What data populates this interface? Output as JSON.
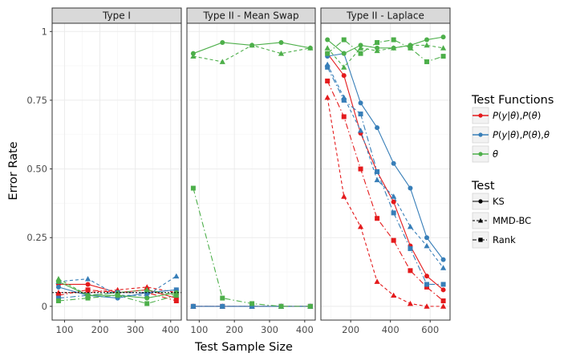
{
  "chart_data": {
    "type": "line",
    "xlabel": "Test Sample Size",
    "ylabel": "Error Rate",
    "ylim": [
      -0.05,
      1.03
    ],
    "yticks": [
      0,
      0.25,
      0.5,
      0.75,
      1
    ],
    "ytick_labels": [
      "0",
      "0.25",
      "0.50",
      "0.75",
      "1"
    ],
    "grid": true,
    "legend_position": "right",
    "colors": {
      "red": "#e41a1c",
      "blue": "#377eb8",
      "green": "#4daf4a",
      "strip": "#d9d9d9",
      "panel_border": "#333333",
      "grid": "#ebebeb",
      "reference_line": "#000000"
    },
    "reference_line_y": 0.05,
    "legend_test_functions": {
      "title": "Test Functions",
      "items": [
        {
          "key": "red",
          "label": "P(y|θ),P(θ)"
        },
        {
          "key": "blue",
          "label": "P(y|θ),P(θ),θ"
        },
        {
          "key": "green",
          "label": "θ"
        }
      ]
    },
    "legend_test": {
      "title": "Test",
      "items": [
        {
          "key": "KS",
          "label": "KS",
          "shape": "circle",
          "dash": "solid"
        },
        {
          "key": "MMD-BC",
          "label": "MMD-BC",
          "shape": "triangle",
          "dash": "dashed"
        },
        {
          "key": "Rank",
          "label": "Rank",
          "shape": "square",
          "dash": "dashdot"
        }
      ]
    },
    "panels": [
      {
        "title": "Type I",
        "xlim": [
          65,
          430
        ],
        "xticks": [
          100,
          200,
          300,
          400
        ],
        "series": [
          {
            "func": "red",
            "test": "KS",
            "x": [
              83,
              166,
              250,
              333,
              416
            ],
            "y": [
              0.08,
              0.08,
              0.05,
              0.06,
              0.03
            ]
          },
          {
            "func": "red",
            "test": "MMD-BC",
            "x": [
              83,
              166,
              250,
              333,
              416
            ],
            "y": [
              0.05,
              0.05,
              0.06,
              0.07,
              0.05
            ]
          },
          {
            "func": "red",
            "test": "Rank",
            "x": [
              83,
              166,
              250,
              333,
              416
            ],
            "y": [
              0.04,
              0.06,
              0.05,
              0.05,
              0.02
            ]
          },
          {
            "func": "blue",
            "test": "KS",
            "x": [
              83,
              166,
              250,
              333,
              416
            ],
            "y": [
              0.07,
              0.04,
              0.03,
              0.05,
              0.06
            ]
          },
          {
            "func": "blue",
            "test": "MMD-BC",
            "x": [
              83,
              166,
              250,
              333,
              416
            ],
            "y": [
              0.09,
              0.1,
              0.04,
              0.04,
              0.11
            ]
          },
          {
            "func": "blue",
            "test": "Rank",
            "x": [
              83,
              166,
              250,
              333,
              416
            ],
            "y": [
              0.03,
              0.04,
              0.05,
              0.05,
              0.06
            ]
          },
          {
            "func": "green",
            "test": "KS",
            "x": [
              83,
              166,
              250,
              333,
              416
            ],
            "y": [
              0.09,
              0.04,
              0.04,
              0.03,
              0.05
            ]
          },
          {
            "func": "green",
            "test": "MMD-BC",
            "x": [
              83,
              166,
              250,
              333,
              416
            ],
            "y": [
              0.1,
              0.04,
              0.05,
              0.06,
              0.04
            ]
          },
          {
            "func": "green",
            "test": "Rank",
            "x": [
              83,
              166,
              250,
              333,
              416
            ],
            "y": [
              0.02,
              0.03,
              0.04,
              0.01,
              0.04
            ]
          }
        ]
      },
      {
        "title": "Type II - Mean Swap",
        "xlim": [
          65,
          430
        ],
        "xticks": [
          100,
          200,
          300,
          400
        ],
        "series": [
          {
            "func": "red",
            "test": "KS",
            "x": [
              83,
              166,
              250,
              333,
              416
            ],
            "y": [
              0,
              0,
              0,
              0,
              0
            ]
          },
          {
            "func": "red",
            "test": "MMD-BC",
            "x": [
              83,
              166,
              250,
              333,
              416
            ],
            "y": [
              0,
              0,
              0,
              0,
              0
            ]
          },
          {
            "func": "red",
            "test": "Rank",
            "x": [
              83,
              166,
              250,
              333,
              416
            ],
            "y": [
              0,
              0,
              0,
              0,
              0
            ]
          },
          {
            "func": "blue",
            "test": "KS",
            "x": [
              83,
              166,
              250,
              333,
              416
            ],
            "y": [
              0,
              0,
              0,
              0,
              0
            ]
          },
          {
            "func": "blue",
            "test": "MMD-BC",
            "x": [
              83,
              166,
              250,
              333,
              416
            ],
            "y": [
              0,
              0,
              0,
              0,
              0
            ]
          },
          {
            "func": "blue",
            "test": "Rank",
            "x": [
              83,
              166,
              250,
              333,
              416
            ],
            "y": [
              0,
              0,
              0,
              0,
              0
            ]
          },
          {
            "func": "green",
            "test": "KS",
            "x": [
              83,
              166,
              250,
              333,
              416
            ],
            "y": [
              0.92,
              0.96,
              0.95,
              0.96,
              0.94
            ]
          },
          {
            "func": "green",
            "test": "MMD-BC",
            "x": [
              83,
              166,
              250,
              333,
              416
            ],
            "y": [
              0.91,
              0.89,
              0.95,
              0.92,
              0.94
            ]
          },
          {
            "func": "green",
            "test": "Rank",
            "x": [
              83,
              166,
              250,
              333,
              416
            ],
            "y": [
              0.43,
              0.03,
              0.01,
              0,
              0
            ]
          }
        ]
      },
      {
        "title": "Type II - Laplace",
        "xlim": [
          50,
          700
        ],
        "xticks": [
          200,
          400,
          600
        ],
        "series": [
          {
            "func": "red",
            "test": "KS",
            "x": [
              83,
              166,
              250,
              333,
              416,
              500,
              583,
              666
            ],
            "y": [
              0.92,
              0.84,
              0.63,
              0.49,
              0.38,
              0.22,
              0.11,
              0.06
            ]
          },
          {
            "func": "red",
            "test": "MMD-BC",
            "x": [
              83,
              166,
              250,
              333,
              416,
              500,
              583,
              666
            ],
            "y": [
              0.76,
              0.4,
              0.29,
              0.09,
              0.04,
              0.01,
              0.0,
              0.0
            ]
          },
          {
            "func": "red",
            "test": "Rank",
            "x": [
              83,
              166,
              250,
              333,
              416,
              500,
              583,
              666
            ],
            "y": [
              0.82,
              0.69,
              0.5,
              0.32,
              0.24,
              0.13,
              0.07,
              0.02
            ]
          },
          {
            "func": "blue",
            "test": "KS",
            "x": [
              83,
              166,
              250,
              333,
              416,
              500,
              583,
              666
            ],
            "y": [
              0.91,
              0.92,
              0.74,
              0.65,
              0.52,
              0.43,
              0.25,
              0.17
            ]
          },
          {
            "func": "blue",
            "test": "MMD-BC",
            "x": [
              83,
              166,
              250,
              333,
              416,
              500,
              583,
              666
            ],
            "y": [
              0.88,
              0.76,
              0.64,
              0.46,
              0.4,
              0.29,
              0.22,
              0.14
            ]
          },
          {
            "func": "blue",
            "test": "Rank",
            "x": [
              83,
              166,
              250,
              333,
              416,
              500,
              583,
              666
            ],
            "y": [
              0.87,
              0.75,
              0.7,
              0.49,
              0.34,
              0.21,
              0.08,
              0.08
            ]
          },
          {
            "func": "green",
            "test": "KS",
            "x": [
              83,
              166,
              250,
              333,
              416,
              500,
              583,
              666
            ],
            "y": [
              0.97,
              0.92,
              0.95,
              0.94,
              0.94,
              0.95,
              0.97,
              0.98
            ]
          },
          {
            "func": "green",
            "test": "MMD-BC",
            "x": [
              83,
              166,
              250,
              333,
              416,
              500,
              583,
              666
            ],
            "y": [
              0.94,
              0.87,
              0.94,
              0.93,
              0.94,
              0.95,
              0.95,
              0.94
            ]
          },
          {
            "func": "green",
            "test": "Rank",
            "x": [
              83,
              166,
              250,
              333,
              416,
              500,
              583,
              666
            ],
            "y": [
              0.92,
              0.97,
              0.92,
              0.96,
              0.97,
              0.94,
              0.89,
              0.91
            ]
          }
        ]
      }
    ]
  }
}
